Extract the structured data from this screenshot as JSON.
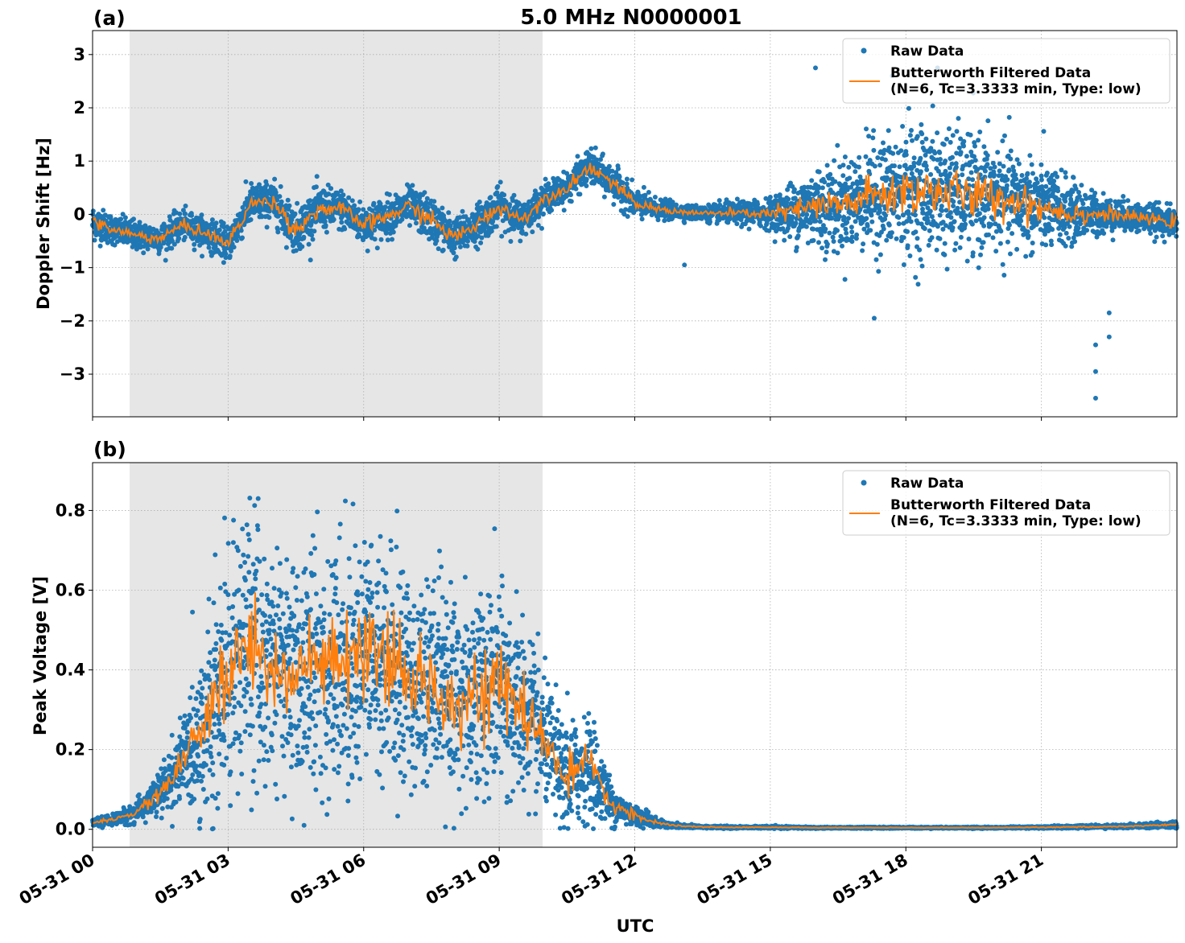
{
  "chart_data": [
    {
      "panel_label": "(a)",
      "type": "scatter",
      "title": "5.0 MHz N0000001",
      "xlabel": "",
      "ylabel": "Doppler Shift [Hz]",
      "xlim": [
        "05-31 00",
        "05-31 24"
      ],
      "ylim": [
        -3.8,
        3.45
      ],
      "yticks": [
        -3,
        -2,
        -1,
        0,
        1,
        2,
        3
      ],
      "ytick_labels": [
        "−3",
        "−2",
        "−1",
        "0",
        "1",
        "2",
        "3"
      ],
      "shaded_region": [
        "05-31 00:48",
        "05-31 09:54"
      ],
      "grid": true,
      "legend": "top-right",
      "series": [
        {
          "name": "Raw Data",
          "style": "points",
          "color": "#1f77b4",
          "x_hours": [
            0,
            0.5,
            1,
            1.5,
            2,
            2.5,
            3,
            3.5,
            4,
            4.5,
            5,
            5.5,
            6,
            6.5,
            7,
            7.5,
            8,
            8.5,
            9,
            9.5,
            10,
            10.5,
            11,
            11.5,
            12,
            12.5,
            13,
            13.5,
            14,
            14.5,
            15,
            15.5,
            16,
            16.5,
            17,
            17.5,
            18,
            18.5,
            19,
            19.5,
            20,
            20.5,
            21,
            21.5,
            22,
            22.5,
            23,
            23.5,
            24
          ],
          "center": [
            -0.15,
            -0.3,
            -0.4,
            -0.45,
            -0.2,
            -0.35,
            -0.55,
            0.2,
            0.25,
            -0.3,
            0.1,
            0.1,
            -0.2,
            -0.05,
            0.15,
            -0.1,
            -0.45,
            -0.2,
            0.15,
            -0.1,
            0.3,
            0.5,
            0.9,
            0.6,
            0.2,
            0.1,
            0.05,
            0.02,
            0.02,
            0.02,
            0.02,
            0.05,
            0.15,
            0.15,
            0.3,
            0.35,
            0.45,
            0.45,
            0.4,
            0.35,
            0.3,
            0.25,
            0.15,
            0.05,
            0.0,
            0.0,
            -0.05,
            -0.1,
            -0.15
          ],
          "spread": [
            0.35,
            0.3,
            0.3,
            0.3,
            0.3,
            0.3,
            0.35,
            0.4,
            0.4,
            0.45,
            0.45,
            0.4,
            0.4,
            0.4,
            0.4,
            0.45,
            0.4,
            0.4,
            0.4,
            0.35,
            0.3,
            0.3,
            0.35,
            0.35,
            0.3,
            0.2,
            0.15,
            0.15,
            0.2,
            0.25,
            0.3,
            0.6,
            0.85,
            0.9,
            1.0,
            1.2,
            1.3,
            1.3,
            1.3,
            1.2,
            1.1,
            1.0,
            0.9,
            0.7,
            0.5,
            0.35,
            0.3,
            0.3,
            0.3
          ],
          "outliers": [
            [
              22.2,
              -2.45
            ],
            [
              22.2,
              -2.95
            ],
            [
              22.2,
              -3.45
            ],
            [
              22.5,
              -2.3
            ],
            [
              22.5,
              -1.85
            ],
            [
              17.3,
              -1.95
            ],
            [
              13.1,
              -0.95
            ],
            [
              18.7,
              2.75
            ],
            [
              17.7,
              2.6
            ],
            [
              16.0,
              2.75
            ]
          ]
        },
        {
          "name": "Butterworth Filtered Data\n(N=6, Tc=3.3333 min, Type: low)",
          "style": "line",
          "color": "#ff7f0e",
          "x_hours": [
            0,
            0.5,
            1,
            1.5,
            2,
            2.5,
            3,
            3.5,
            4,
            4.5,
            5,
            5.5,
            6,
            6.5,
            7,
            7.5,
            8,
            8.5,
            9,
            9.5,
            10,
            10.5,
            11,
            11.5,
            12,
            12.5,
            13,
            13.5,
            14,
            14.5,
            15,
            15.5,
            16,
            16.5,
            17,
            17.5,
            18,
            18.5,
            19,
            19.5,
            20,
            20.5,
            21,
            21.5,
            22,
            22.5,
            23,
            23.5,
            24
          ],
          "values": [
            -0.15,
            -0.3,
            -0.4,
            -0.45,
            -0.2,
            -0.35,
            -0.55,
            0.2,
            0.25,
            -0.3,
            0.1,
            0.1,
            -0.2,
            -0.05,
            0.15,
            -0.1,
            -0.45,
            -0.2,
            0.15,
            -0.1,
            0.3,
            0.5,
            0.9,
            0.6,
            0.2,
            0.1,
            0.05,
            0.02,
            0.02,
            0.02,
            0.02,
            0.05,
            0.15,
            0.15,
            0.3,
            0.35,
            0.45,
            0.45,
            0.4,
            0.35,
            0.3,
            0.25,
            0.15,
            0.05,
            0.0,
            0.0,
            -0.05,
            -0.1,
            -0.15
          ]
        }
      ]
    },
    {
      "panel_label": "(b)",
      "type": "scatter",
      "title": "",
      "xlabel": "UTC",
      "ylabel": "Peak Voltage [V]",
      "xlim": [
        "05-31 00",
        "05-31 24"
      ],
      "ylim": [
        -0.045,
        0.92
      ],
      "yticks": [
        0.0,
        0.2,
        0.4,
        0.6,
        0.8
      ],
      "ytick_labels": [
        "0.0",
        "0.2",
        "0.4",
        "0.6",
        "0.8"
      ],
      "xticks_hours": [
        0,
        3,
        6,
        9,
        12,
        15,
        18,
        21
      ],
      "xtick_labels": [
        "05-31 00",
        "05-31 03",
        "05-31 06",
        "05-31 09",
        "05-31 12",
        "05-31 15",
        "05-31 18",
        "05-31 21"
      ],
      "shaded_region": [
        "05-31 00:48",
        "05-31 09:54"
      ],
      "grid": true,
      "legend": "top-right",
      "series": [
        {
          "name": "Raw Data",
          "style": "points",
          "color": "#1f77b4",
          "x_hours": [
            0,
            0.5,
            1,
            1.5,
            2,
            2.5,
            3,
            3.5,
            4,
            4.5,
            5,
            5.5,
            6,
            6.5,
            7,
            7.5,
            8,
            8.5,
            9,
            9.5,
            10,
            10.5,
            11,
            11.5,
            12,
            12.5,
            13,
            13.5,
            14,
            15,
            16,
            17,
            18,
            19,
            20,
            21,
            22,
            23,
            24
          ],
          "center": [
            0.015,
            0.025,
            0.045,
            0.09,
            0.17,
            0.26,
            0.4,
            0.46,
            0.42,
            0.38,
            0.42,
            0.4,
            0.45,
            0.4,
            0.38,
            0.36,
            0.33,
            0.35,
            0.35,
            0.3,
            0.22,
            0.13,
            0.16,
            0.06,
            0.035,
            0.015,
            0.008,
            0.006,
            0.005,
            0.005,
            0.004,
            0.004,
            0.004,
            0.004,
            0.004,
            0.005,
            0.006,
            0.008,
            0.012
          ],
          "spread": [
            0.01,
            0.015,
            0.03,
            0.06,
            0.12,
            0.25,
            0.36,
            0.36,
            0.33,
            0.33,
            0.34,
            0.33,
            0.32,
            0.32,
            0.3,
            0.3,
            0.27,
            0.28,
            0.3,
            0.25,
            0.17,
            0.15,
            0.13,
            0.05,
            0.03,
            0.012,
            0.006,
            0.004,
            0.003,
            0.003,
            0.002,
            0.002,
            0.002,
            0.002,
            0.002,
            0.003,
            0.004,
            0.005,
            0.008
          ]
        },
        {
          "name": "Butterworth Filtered Data\n(N=6, Tc=3.3333 min, Type: low)",
          "style": "line",
          "color": "#ff7f0e",
          "x_hours": [
            0,
            0.5,
            1,
            1.5,
            2,
            2.5,
            3,
            3.5,
            4,
            4.5,
            5,
            5.5,
            6,
            6.5,
            7,
            7.5,
            8,
            8.5,
            9,
            9.5,
            10,
            10.5,
            11,
            11.5,
            12,
            12.5,
            13,
            13.5,
            14,
            15,
            16,
            17,
            18,
            19,
            20,
            21,
            22,
            23,
            24
          ],
          "values": [
            0.015,
            0.025,
            0.045,
            0.09,
            0.17,
            0.26,
            0.4,
            0.46,
            0.42,
            0.38,
            0.42,
            0.4,
            0.45,
            0.4,
            0.38,
            0.36,
            0.33,
            0.35,
            0.35,
            0.3,
            0.22,
            0.13,
            0.16,
            0.06,
            0.035,
            0.015,
            0.008,
            0.006,
            0.005,
            0.005,
            0.004,
            0.004,
            0.004,
            0.004,
            0.004,
            0.005,
            0.006,
            0.008,
            0.012
          ]
        }
      ]
    }
  ]
}
